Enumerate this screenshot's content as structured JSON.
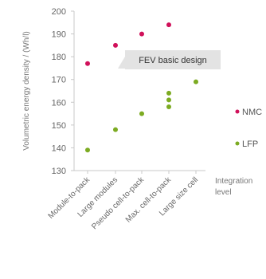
{
  "chart_data": {
    "type": "scatter",
    "ylabel": "Volumetric energy density / (Wh/l)",
    "xlabel": "Integration level",
    "ylim": [
      130,
      200
    ],
    "yticks": [
      130,
      140,
      150,
      160,
      170,
      180,
      190,
      200
    ],
    "grid": false,
    "legend_position": "right",
    "categories": [
      "Module-to-pack",
      "Large modules",
      "Pseudo cell-to-pack",
      "Max. cell-to-pack",
      "Large size cell"
    ],
    "series": [
      {
        "name": "NMC",
        "color": "#d0115a",
        "points": [
          {
            "category": "Module-to-pack",
            "y": 177
          },
          {
            "category": "Large modules",
            "y": 185
          },
          {
            "category": "Pseudo cell-to-pack",
            "y": 190
          },
          {
            "category": "Max. cell-to-pack",
            "y": 194
          }
        ]
      },
      {
        "name": "LFP",
        "color": "#7cab22",
        "points": [
          {
            "category": "Module-to-pack",
            "y": 139
          },
          {
            "category": "Large modules",
            "y": 148
          },
          {
            "category": "Pseudo cell-to-pack",
            "y": 155
          },
          {
            "category": "Max. cell-to-pack",
            "y": 158
          },
          {
            "category": "Max. cell-to-pack",
            "y": 161
          },
          {
            "category": "Max. cell-to-pack",
            "y": 164
          },
          {
            "category": "Large size cell",
            "y": 169
          }
        ]
      }
    ],
    "annotations": [
      {
        "text": "FEV basic design",
        "category": "Module-to-pack",
        "y": 177
      }
    ]
  }
}
